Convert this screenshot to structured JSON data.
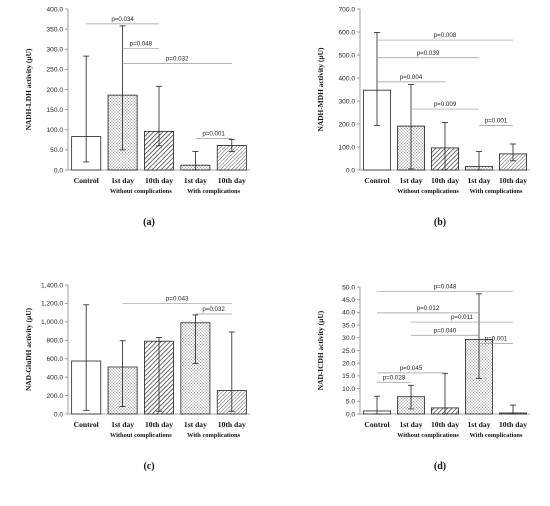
{
  "chart_data": [
    {
      "type": "bar",
      "panel_label": "(a)",
      "ylabel": "NADH-LDH activity (µU)",
      "ylim": [
        0,
        400
      ],
      "yticks": [
        "0.0",
        "50.0",
        "100.0",
        "150.0",
        "200.0",
        "250.0",
        "300.0",
        "350.0",
        "400.0"
      ],
      "categories": [
        "Control",
        "1st day",
        "10th day",
        "1st day",
        "10th day"
      ],
      "group_labels": [
        "Without complications",
        "With complications"
      ],
      "values": [
        83,
        186,
        96,
        12,
        61
      ],
      "error_low": [
        20,
        50,
        60,
        0,
        46
      ],
      "error_high": [
        283,
        358,
        208,
        46,
        76
      ],
      "comparisons": [
        {
          "from": 0,
          "to": 2,
          "y": 363,
          "label": "p=0.034"
        },
        {
          "from": 1,
          "to": 2,
          "y": 302,
          "label": "p=0.048"
        },
        {
          "from": 1,
          "to": 4,
          "y": 265,
          "label": "p=0.032"
        },
        {
          "from": 3,
          "to": 4,
          "y": 78,
          "label": "p=0.001"
        }
      ]
    },
    {
      "type": "bar",
      "panel_label": "(b)",
      "ylabel": "NADH-MDH activity (µU)",
      "ylim": [
        0,
        700
      ],
      "yticks": [
        "0.0",
        "100.0",
        "200.0",
        "300.0",
        "400.0",
        "500.0",
        "600.0",
        "700.0"
      ],
      "categories": [
        "Control",
        "1st day",
        "10th day",
        "1st day",
        "10th day"
      ],
      "group_labels": [
        "Without complications",
        "With complications"
      ],
      "values": [
        347,
        191,
        96,
        15,
        70
      ],
      "error_low": [
        193,
        5,
        0,
        0,
        40
      ],
      "error_high": [
        598,
        372,
        207,
        80,
        113
      ],
      "comparisons": [
        {
          "from": 0,
          "to": 4,
          "y": 565,
          "label": "p=0.008"
        },
        {
          "from": 0,
          "to": 3,
          "y": 488,
          "label": "p=0.039"
        },
        {
          "from": 0,
          "to": 2,
          "y": 383,
          "label": "p=0.004"
        },
        {
          "from": 1,
          "to": 3,
          "y": 265,
          "label": "p=0.009"
        },
        {
          "from": 3,
          "to": 4,
          "y": 193,
          "label": "p=0.001"
        }
      ]
    },
    {
      "type": "bar",
      "panel_label": "(c)",
      "ylabel": "NAD-GluDH activity (µU)",
      "ylim": [
        0,
        1400
      ],
      "yticks": [
        "0.0",
        "200.0",
        "400.0",
        "600.0",
        "800.0",
        "1,000.0",
        "1,200.0",
        "1,400.0"
      ],
      "categories": [
        "Control",
        "1st day",
        "10th day",
        "1st day",
        "10th day"
      ],
      "group_labels": [
        "Without complications",
        "With complications"
      ],
      "values": [
        575,
        510,
        790,
        990,
        255
      ],
      "error_low": [
        40,
        80,
        30,
        550,
        30
      ],
      "error_high": [
        1185,
        795,
        830,
        1075,
        890
      ],
      "comparisons": [
        {
          "from": 1,
          "to": 4,
          "y": 1200,
          "label": "p=0.043"
        },
        {
          "from": 3,
          "to": 4,
          "y": 1085,
          "label": "p=0.032"
        }
      ]
    },
    {
      "type": "bar",
      "panel_label": "(d)",
      "ylabel": "NAD-ICDH activity (µU)",
      "ylim": [
        0,
        50
      ],
      "yticks": [
        "0.0",
        "5.0",
        "10.0",
        "15.0",
        "20.0",
        "25.0",
        "30.0",
        "35.0",
        "40.0",
        "45.0",
        "50.0"
      ],
      "categories": [
        "Control",
        "1st day",
        "10th day",
        "1st day",
        "10th day"
      ],
      "group_labels": [
        "Without complications",
        "With complications"
      ],
      "values": [
        1.2,
        6.8,
        2.4,
        29.3,
        0.4
      ],
      "error_low": [
        0,
        2,
        0,
        14,
        0
      ],
      "error_high": [
        7,
        11.3,
        16,
        47.3,
        3.5
      ],
      "comparisons": [
        {
          "from": 0,
          "to": 4,
          "y": 48.2,
          "label": "p=0.048"
        },
        {
          "from": 0,
          "to": 3,
          "y": 39.8,
          "label": "p=0.012"
        },
        {
          "from": 1,
          "to": 4,
          "y": 36.2,
          "label": "p=0.011"
        },
        {
          "from": 1,
          "to": 3,
          "y": 31,
          "label": "p=0.040"
        },
        {
          "from": 3,
          "to": 4,
          "y": 27.8,
          "label": "p=0.001"
        },
        {
          "from": 0,
          "to": 2,
          "y": 16.2,
          "label": "p=0.045"
        },
        {
          "from": 0,
          "to": 1,
          "y": 12.5,
          "label": "p=0.028"
        }
      ]
    }
  ]
}
